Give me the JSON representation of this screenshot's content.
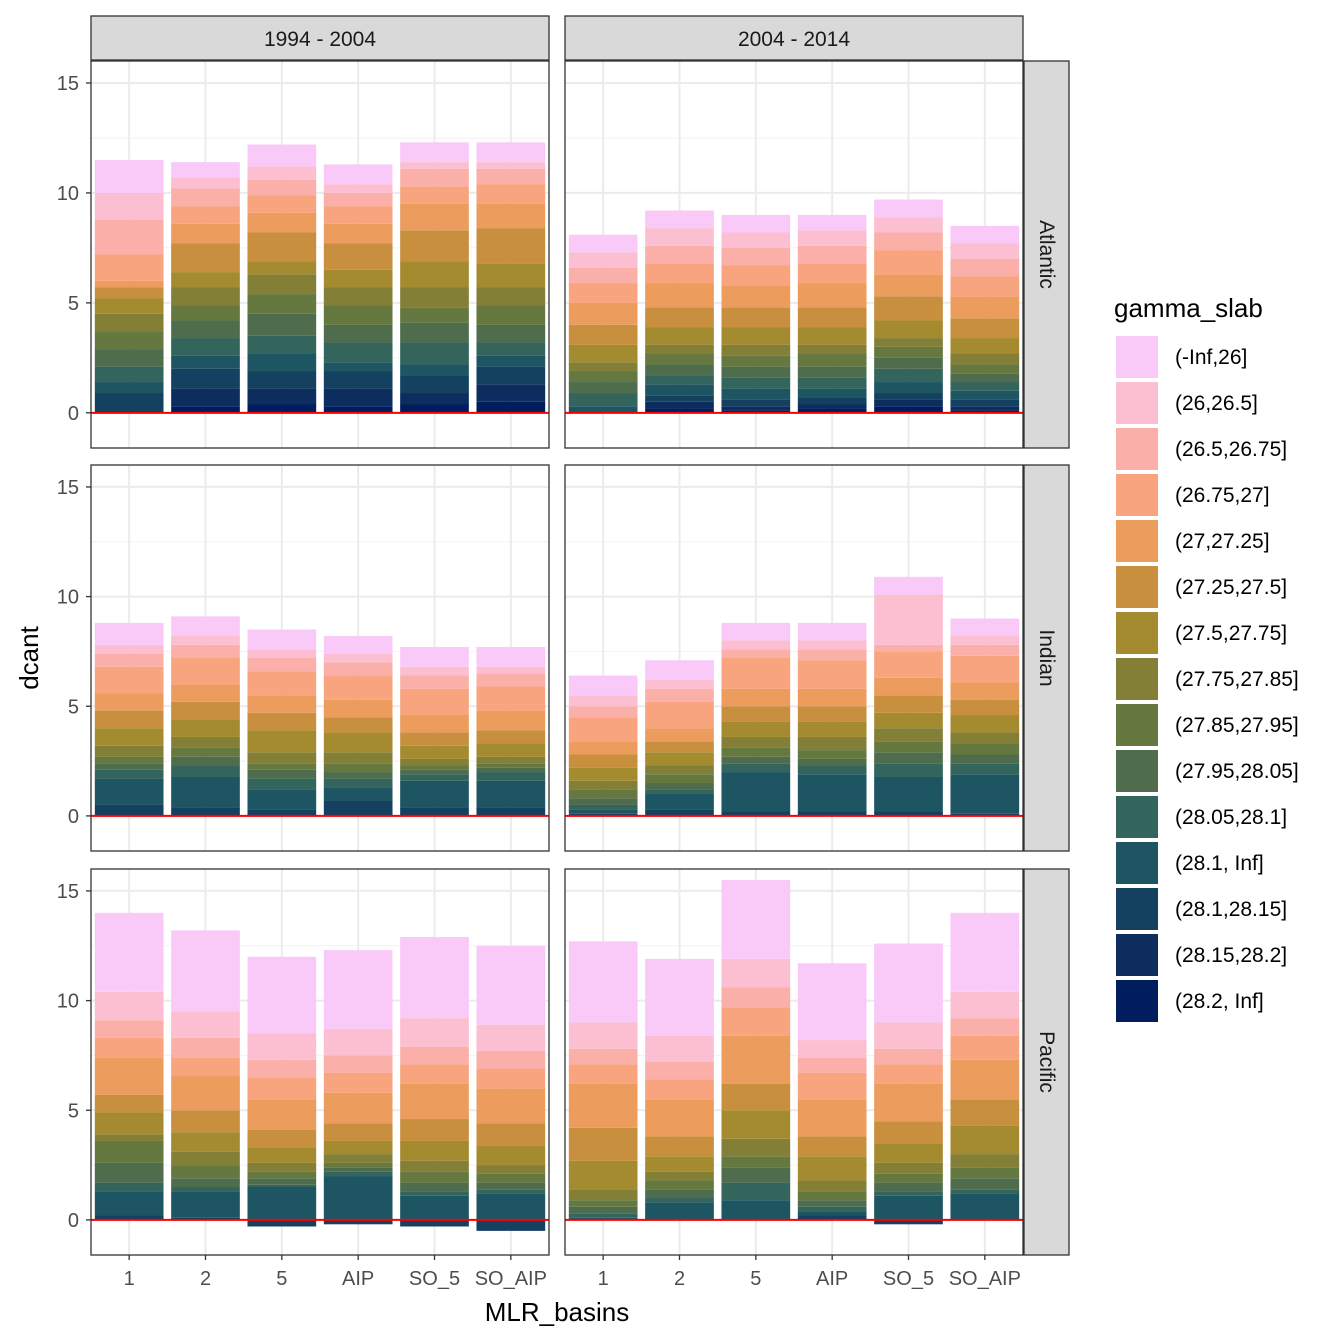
{
  "chart_data": {
    "type": "bar",
    "stacked": true,
    "xlabel": "MLR_basins",
    "ylabel": "dcant",
    "categories": [
      "1",
      "2",
      "5",
      "AIP",
      "SO_5",
      "SO_AIP"
    ],
    "ylim": [
      -1.6,
      16
    ],
    "yticks": [
      0,
      5,
      10,
      15
    ],
    "reference_line": {
      "y": 0,
      "color": "#ff0000"
    },
    "grid": true,
    "legend": {
      "title": "gamma_slab",
      "position": "right",
      "entries": [
        "(-Inf,26]",
        "(26,26.5]",
        "(26.5,26.75]",
        "(26.75,27]",
        "(27,27.25]",
        "(27.25,27.5]",
        "(27.5,27.75]",
        "(27.75,27.85]",
        "(27.85,27.95]",
        "(27.95,28.05]",
        "(28.05,28.1]",
        "(28.1, Inf]",
        "(28.1,28.15]",
        "(28.15,28.2]",
        "(28.2, Inf]"
      ],
      "colors": [
        "#F9CAF8",
        "#FBBFD1",
        "#FAB0A8",
        "#F8A47E",
        "#EC9C5D",
        "#C8903E",
        "#A58B30",
        "#837F36",
        "#64783F",
        "#4F6D4D",
        "#33655C",
        "#1E5562",
        "#13415F",
        "#0C2D5E",
        "#021D5E"
      ]
    },
    "col_facets": [
      "1994 - 2004",
      "2004 - 2014"
    ],
    "row_facets": [
      "Atlantic",
      "Indian",
      "Pacific"
    ],
    "panels": [
      {
        "row": "Atlantic",
        "col": "1994 - 2004",
        "stacks": [
          [
            1.5,
            1.2,
            1.6,
            1.2,
            0.3,
            0.5,
            0.7,
            0.8,
            0.8,
            0.8,
            0.7,
            0.5,
            0.9,
            0,
            0
          ],
          [
            0.7,
            0.5,
            0.8,
            0.8,
            0.9,
            1.3,
            0.7,
            0.8,
            0.7,
            0.8,
            0.8,
            0.6,
            0.9,
            0.8,
            0.3
          ],
          [
            1.0,
            0.6,
            0.7,
            0.8,
            0.9,
            1.3,
            0.6,
            0.9,
            0.9,
            1.0,
            0.8,
            0.8,
            0.8,
            0.7,
            0.4
          ],
          [
            0.9,
            0.4,
            0.6,
            0.8,
            0.9,
            1.2,
            0.8,
            0.8,
            0.9,
            0.8,
            0.9,
            0.4,
            0.8,
            0.8,
            0.3
          ],
          [
            0.9,
            0.3,
            0.8,
            0.8,
            1.2,
            1.4,
            1.2,
            0.9,
            0.7,
            0.9,
            1.0,
            0.5,
            0.8,
            0.5,
            0.4
          ],
          [
            0.9,
            0.3,
            0.7,
            0.9,
            1.1,
            1.6,
            1.1,
            0.8,
            0.9,
            0.8,
            0.6,
            0.5,
            0.8,
            0.8,
            0.5
          ]
        ]
      },
      {
        "row": "Atlantic",
        "col": "2004 - 2014",
        "stacks": [
          [
            0.8,
            0.7,
            0.7,
            0.9,
            1.0,
            0.9,
            0.8,
            0.4,
            0.5,
            0.5,
            0.6,
            0.3,
            0,
            0,
            0
          ],
          [
            0.8,
            0.8,
            0.8,
            0.9,
            1.1,
            0.9,
            0.8,
            0.4,
            0.5,
            0.5,
            0.4,
            0.5,
            0.3,
            0.3,
            0.2
          ],
          [
            0.8,
            0.7,
            0.8,
            0.9,
            1.0,
            0.9,
            0.8,
            0.5,
            0.5,
            0.5,
            0.5,
            0.5,
            0.3,
            0.2,
            0.1
          ],
          [
            0.7,
            0.7,
            0.8,
            0.9,
            1.1,
            0.9,
            0.8,
            0.4,
            0.6,
            0.5,
            0.5,
            0.4,
            0.3,
            0.2,
            0.2
          ],
          [
            0.8,
            0.7,
            0.8,
            1.1,
            1.0,
            1.1,
            0.8,
            0.4,
            0.5,
            0.5,
            0.6,
            0.5,
            0.3,
            0.3,
            0.3
          ],
          [
            0.8,
            0.7,
            0.8,
            0.9,
            1.0,
            0.9,
            0.7,
            0.5,
            0.4,
            0.4,
            0.4,
            0.4,
            0.3,
            0.2,
            0.1
          ]
        ]
      },
      {
        "row": "Indian",
        "col": "1994 - 2004",
        "stacks": [
          [
            1.0,
            0.4,
            0.6,
            1.2,
            0.8,
            0.8,
            0.8,
            0.5,
            0.3,
            0.3,
            0.4,
            1.2,
            0.5,
            0,
            0
          ],
          [
            0.9,
            0.4,
            0.6,
            1.2,
            0.8,
            0.8,
            0.8,
            0.5,
            0.4,
            0.4,
            0.5,
            1.4,
            0.4,
            0,
            0
          ],
          [
            0.9,
            0.4,
            0.6,
            1.1,
            0.8,
            0.8,
            1.0,
            0.5,
            0.3,
            0.4,
            0.5,
            0.9,
            0.3,
            0,
            0
          ],
          [
            0.8,
            0.4,
            0.6,
            1.1,
            0.8,
            0.7,
            0.9,
            0.5,
            0.4,
            0.3,
            0.4,
            0.6,
            0.7,
            0,
            0
          ],
          [
            0.9,
            0.4,
            0.6,
            1.2,
            0.8,
            0.6,
            0.6,
            0.3,
            0.2,
            0.2,
            0.3,
            1.2,
            0.4,
            0,
            0
          ],
          [
            0.9,
            0.3,
            0.6,
            1.1,
            0.9,
            0.6,
            0.6,
            0.3,
            0.2,
            0.2,
            0.4,
            1.2,
            0.4,
            0,
            0
          ]
        ]
      },
      {
        "row": "Indian",
        "col": "2004 - 2014",
        "stacks": [
          [
            0.9,
            0.5,
            0.5,
            1.1,
            0.6,
            0.6,
            0.6,
            0.4,
            0.4,
            0.3,
            0.2,
            0.2,
            0.1,
            0,
            0
          ],
          [
            0.9,
            0.4,
            0.6,
            1.2,
            0.6,
            0.5,
            0.6,
            0.4,
            0.4,
            0.3,
            0.2,
            0.7,
            0.3,
            0,
            0
          ],
          [
            0.8,
            0.4,
            0.4,
            1.4,
            0.8,
            0.7,
            0.7,
            0.5,
            0.4,
            0.3,
            0.4,
            1.8,
            0.2,
            0,
            0
          ],
          [
            0.8,
            0.4,
            0.5,
            1.3,
            0.8,
            0.7,
            0.7,
            0.6,
            0.4,
            0.3,
            0.4,
            1.7,
            0.2,
            0,
            0
          ],
          [
            0.8,
            2.3,
            0.3,
            1.2,
            0.8,
            0.8,
            0.7,
            0.6,
            0.5,
            0.5,
            0.6,
            1.6,
            0.2,
            0,
            0
          ],
          [
            0.8,
            0.4,
            0.5,
            1.2,
            0.8,
            0.7,
            0.8,
            0.5,
            0.5,
            0.4,
            0.5,
            1.8,
            0.1,
            0,
            0
          ]
        ]
      },
      {
        "row": "Pacific",
        "col": "1994 - 2004",
        "stacks": [
          [
            3.6,
            1.3,
            0.8,
            0.9,
            1.7,
            0.8,
            1.0,
            0.3,
            1.0,
            0.9,
            0.4,
            1.1,
            0.2,
            0,
            0
          ],
          [
            3.7,
            1.2,
            0.9,
            0.8,
            1.6,
            1.0,
            0.9,
            0.6,
            0.6,
            0.4,
            0.2,
            1.2,
            0.1,
            0,
            0
          ],
          [
            3.5,
            1.2,
            0.8,
            1.0,
            1.4,
            0.8,
            0.7,
            0.4,
            0.3,
            0.3,
            0.1,
            1.5,
            -0.3,
            0,
            0
          ],
          [
            3.6,
            1.2,
            0.8,
            0.9,
            1.4,
            0.8,
            0.6,
            0.4,
            0.2,
            0.2,
            0.2,
            2.0,
            -0.2,
            0,
            0
          ],
          [
            3.7,
            1.3,
            0.8,
            0.9,
            1.6,
            1.0,
            0.9,
            0.5,
            0.5,
            0.4,
            0.2,
            1.1,
            -0.3,
            0,
            0
          ],
          [
            3.6,
            1.2,
            0.8,
            0.9,
            1.6,
            1.0,
            0.9,
            0.4,
            0.4,
            0.3,
            0.2,
            1.2,
            -0.5,
            0,
            0
          ]
        ]
      },
      {
        "row": "Pacific",
        "col": "2004 - 2014",
        "stacks": [
          [
            3.7,
            1.2,
            0.7,
            0.9,
            2.0,
            1.5,
            1.3,
            0.5,
            0.3,
            0.3,
            0.2,
            0.1,
            0,
            0,
            0
          ],
          [
            3.5,
            1.2,
            0.8,
            0.9,
            1.7,
            0.9,
            0.7,
            0.4,
            0.4,
            0.4,
            0.2,
            0.8,
            0,
            0,
            0
          ],
          [
            3.6,
            1.3,
            0.9,
            1.3,
            2.2,
            1.2,
            1.3,
            0.8,
            0.5,
            0.7,
            0.8,
            0.9,
            0,
            0,
            0
          ],
          [
            3.5,
            0.8,
            0.7,
            1.2,
            1.7,
            0.9,
            1.1,
            0.5,
            0.4,
            0.3,
            0.2,
            0.2,
            0.2,
            0,
            0
          ],
          [
            3.6,
            1.2,
            0.7,
            0.9,
            1.7,
            1.0,
            0.9,
            0.5,
            0.4,
            0.4,
            0.2,
            1.1,
            -0.2,
            0,
            0
          ],
          [
            3.6,
            1.2,
            0.8,
            1.1,
            1.8,
            1.2,
            1.3,
            0.6,
            0.5,
            0.5,
            0.2,
            1.2,
            0,
            0,
            0
          ]
        ]
      }
    ]
  }
}
